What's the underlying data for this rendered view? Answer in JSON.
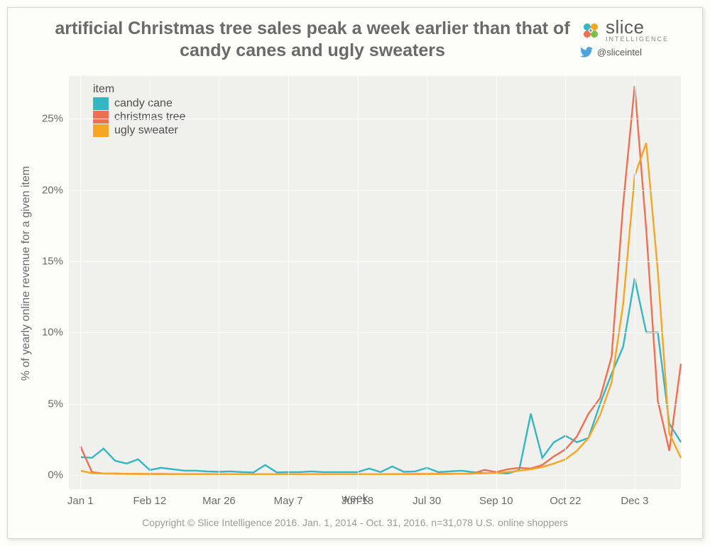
{
  "title": "artificial Christmas tree sales peak a week earlier than that of candy canes and ugly sweaters",
  "branding": {
    "name_big": "slice",
    "name_small": "INTELLIGENCE",
    "twitter": "@sliceintel",
    "logo_colors": [
      "#34b6c4",
      "#f5a623",
      "#ef6f53",
      "#7bbf4a"
    ]
  },
  "chart": {
    "type": "line",
    "background_color": "#f0f0ec",
    "grid_color": "#ffffff",
    "line_width": 2.4,
    "y_axis": {
      "title": "% of yearly online revenue for a given item",
      "min": -1.0,
      "max": 28.0,
      "ticks": [
        0,
        5,
        10,
        15,
        20,
        25
      ],
      "tick_labels": [
        "0%",
        "5%",
        "10%",
        "15%",
        "20%",
        "25%"
      ],
      "label_fontsize": 15,
      "title_fontsize": 16
    },
    "x_axis": {
      "title": "week",
      "min": 0,
      "max": 53,
      "tick_positions": [
        1,
        7,
        13,
        19,
        25,
        31,
        37,
        43,
        49
      ],
      "tick_labels": [
        "Jan 1",
        "Feb 12",
        "Mar 26",
        "May 7",
        "Jun 18",
        "Jul 30",
        "Sep 10",
        "Oct 22",
        "Dec 3"
      ],
      "label_fontsize": 15,
      "title_fontsize": 16
    },
    "legend": {
      "title": "item",
      "position": "top-left-inside"
    },
    "series": [
      {
        "name": "candy cane",
        "color": "#34b6c4",
        "values": [
          1.25,
          1.2,
          1.85,
          1.0,
          0.8,
          1.1,
          0.35,
          0.5,
          0.4,
          0.3,
          0.3,
          0.25,
          0.22,
          0.25,
          0.2,
          0.18,
          0.7,
          0.18,
          0.2,
          0.2,
          0.25,
          0.2,
          0.2,
          0.2,
          0.2,
          0.45,
          0.2,
          0.6,
          0.22,
          0.25,
          0.5,
          0.2,
          0.25,
          0.3,
          0.2,
          0.12,
          0.15,
          0.1,
          0.35,
          4.3,
          1.2,
          2.3,
          2.75,
          2.3,
          2.6,
          5.0,
          7.1,
          9.0,
          13.8,
          10.0,
          10.0,
          3.6,
          2.3
        ]
      },
      {
        "name": "christmas tree",
        "color": "#ef6f53",
        "values": [
          2.0,
          0.2,
          0.1,
          0.1,
          0.08,
          0.08,
          0.07,
          0.07,
          0.06,
          0.06,
          0.06,
          0.06,
          0.05,
          0.05,
          0.05,
          0.05,
          0.05,
          0.05,
          0.05,
          0.05,
          0.05,
          0.05,
          0.05,
          0.05,
          0.05,
          0.05,
          0.05,
          0.06,
          0.06,
          0.07,
          0.07,
          0.08,
          0.08,
          0.08,
          0.1,
          0.35,
          0.2,
          0.4,
          0.5,
          0.45,
          0.7,
          1.3,
          1.8,
          2.7,
          4.3,
          5.4,
          8.3,
          19.0,
          27.3,
          17.2,
          5.2,
          1.7,
          7.8
        ]
      },
      {
        "name": "ugly sweater",
        "color": "#f5a623",
        "values": [
          0.3,
          0.12,
          0.1,
          0.08,
          0.07,
          0.06,
          0.06,
          0.05,
          0.05,
          0.05,
          0.05,
          0.05,
          0.05,
          0.05,
          0.05,
          0.05,
          0.05,
          0.05,
          0.05,
          0.05,
          0.05,
          0.05,
          0.05,
          0.05,
          0.05,
          0.05,
          0.05,
          0.05,
          0.05,
          0.05,
          0.06,
          0.06,
          0.07,
          0.08,
          0.1,
          0.12,
          0.15,
          0.2,
          0.3,
          0.4,
          0.55,
          0.8,
          1.1,
          1.7,
          2.6,
          4.2,
          6.5,
          12.0,
          21.0,
          23.3,
          14.3,
          2.9,
          1.2
        ]
      }
    ]
  },
  "caption": "Copyright © Slice Intelligence 2016. Jan. 1, 2014 - Oct. 31, 2016. n=31,078 U.S. online shoppers",
  "colors": {
    "text": "#6a6a6a",
    "caption": "#9a9a9a",
    "twitter_bird": "#4da3e0"
  }
}
